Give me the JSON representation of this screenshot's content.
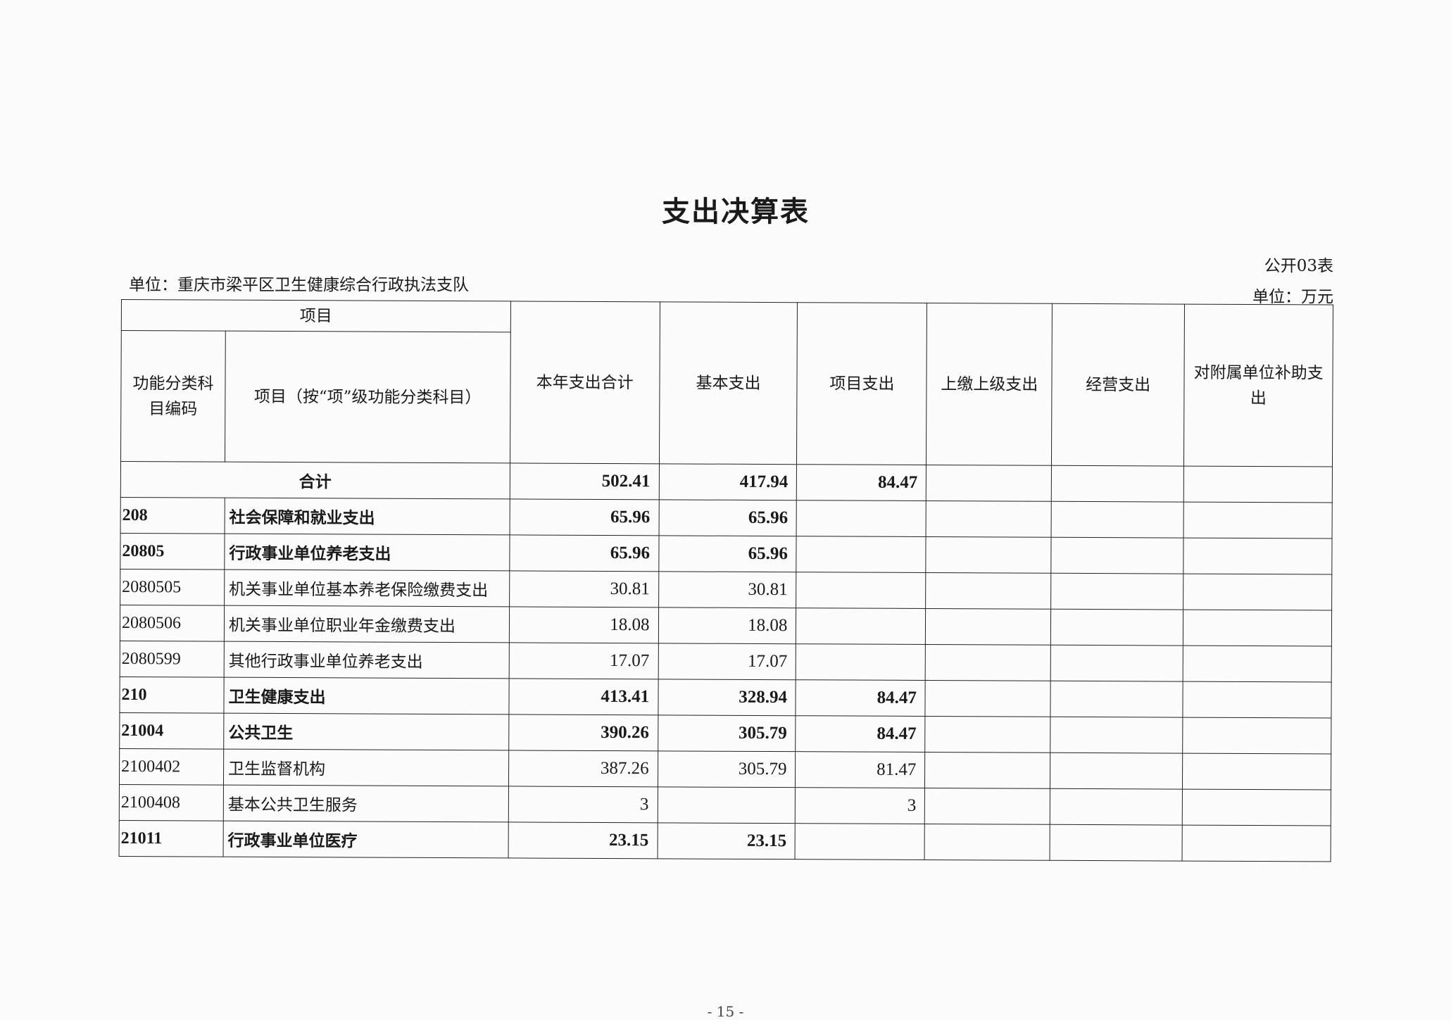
{
  "title": "支出决算表",
  "form_no": "公开03表",
  "organization": "单位：重庆市梁平区卫生健康综合行政执法支队",
  "unit": "单位：万元",
  "headers": {
    "item_group": "项目",
    "code": "功能分类科目编码",
    "name": "项目（按“项”级功能分类科目）",
    "total": "本年支出合计",
    "basic": "基本支出",
    "project": "项目支出",
    "upper": "上缴上级支出",
    "business": "经营支出",
    "subsidy": "对附属单位补助支出"
  },
  "total_row": {
    "label": "合计",
    "total": "502.41",
    "basic": "417.94",
    "project": "84.47",
    "upper": "",
    "business": "",
    "subsidy": ""
  },
  "rows": [
    {
      "code": "208",
      "name": "社会保障和就业支出",
      "total": "65.96",
      "basic": "65.96",
      "project": "",
      "bold": true
    },
    {
      "code": "20805",
      "name": "行政事业单位养老支出",
      "total": "65.96",
      "basic": "65.96",
      "project": "",
      "bold": true
    },
    {
      "code": "2080505",
      "name": "机关事业单位基本养老保险缴费支出",
      "total": "30.81",
      "basic": "30.81",
      "project": "",
      "bold": false
    },
    {
      "code": "2080506",
      "name": "机关事业单位职业年金缴费支出",
      "total": "18.08",
      "basic": "18.08",
      "project": "",
      "bold": false
    },
    {
      "code": "2080599",
      "name": "其他行政事业单位养老支出",
      "total": "17.07",
      "basic": "17.07",
      "project": "",
      "bold": false
    },
    {
      "code": "210",
      "name": "卫生健康支出",
      "total": "413.41",
      "basic": "328.94",
      "project": "84.47",
      "bold": true
    },
    {
      "code": "21004",
      "name": "公共卫生",
      "total": "390.26",
      "basic": "305.79",
      "project": "84.47",
      "bold": true
    },
    {
      "code": "2100402",
      "name": "卫生监督机构",
      "total": "387.26",
      "basic": "305.79",
      "project": "81.47",
      "bold": false
    },
    {
      "code": "2100408",
      "name": "基本公共卫生服务",
      "total": "3",
      "basic": "",
      "project": "3",
      "bold": false
    },
    {
      "code": "21011",
      "name": "行政事业单位医疗",
      "total": "23.15",
      "basic": "23.15",
      "project": "",
      "bold": true
    }
  ],
  "page_number": "- 15 -"
}
